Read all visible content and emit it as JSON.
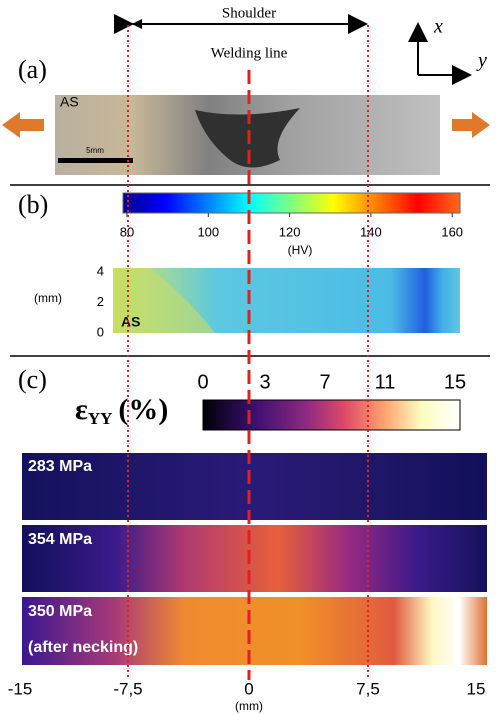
{
  "figure": {
    "shoulder_label": "Shoulder",
    "welding_line_label": "Welding line",
    "axis_x": "x",
    "axis_y": "y",
    "panel_a": {
      "label": "(a)",
      "side_label": "AS",
      "scale_bar": "5mm"
    },
    "panel_b": {
      "label": "(b)",
      "colorbar_ticks": [
        "80",
        "100",
        "120",
        "140",
        "160"
      ],
      "colorbar_unit": "(HV)",
      "y_ticks": [
        "4",
        "2",
        "0"
      ],
      "y_unit": "(mm)",
      "side_label": "AS"
    },
    "panel_c": {
      "label": "(c)",
      "strain_symbol": "ε",
      "strain_subscript": "YY",
      "strain_unit": "(%)",
      "colorbar_ticks": [
        "0",
        "3",
        "7",
        "11",
        "15"
      ],
      "maps": [
        {
          "stress": "283 MPa"
        },
        {
          "stress": "354 MPa"
        },
        {
          "stress": "350 MPa",
          "note": "(after necking)"
        }
      ]
    },
    "x_ticks": [
      "-15",
      "-7,5",
      "0",
      "7,5",
      "15"
    ],
    "x_unit": "(mm)"
  }
}
